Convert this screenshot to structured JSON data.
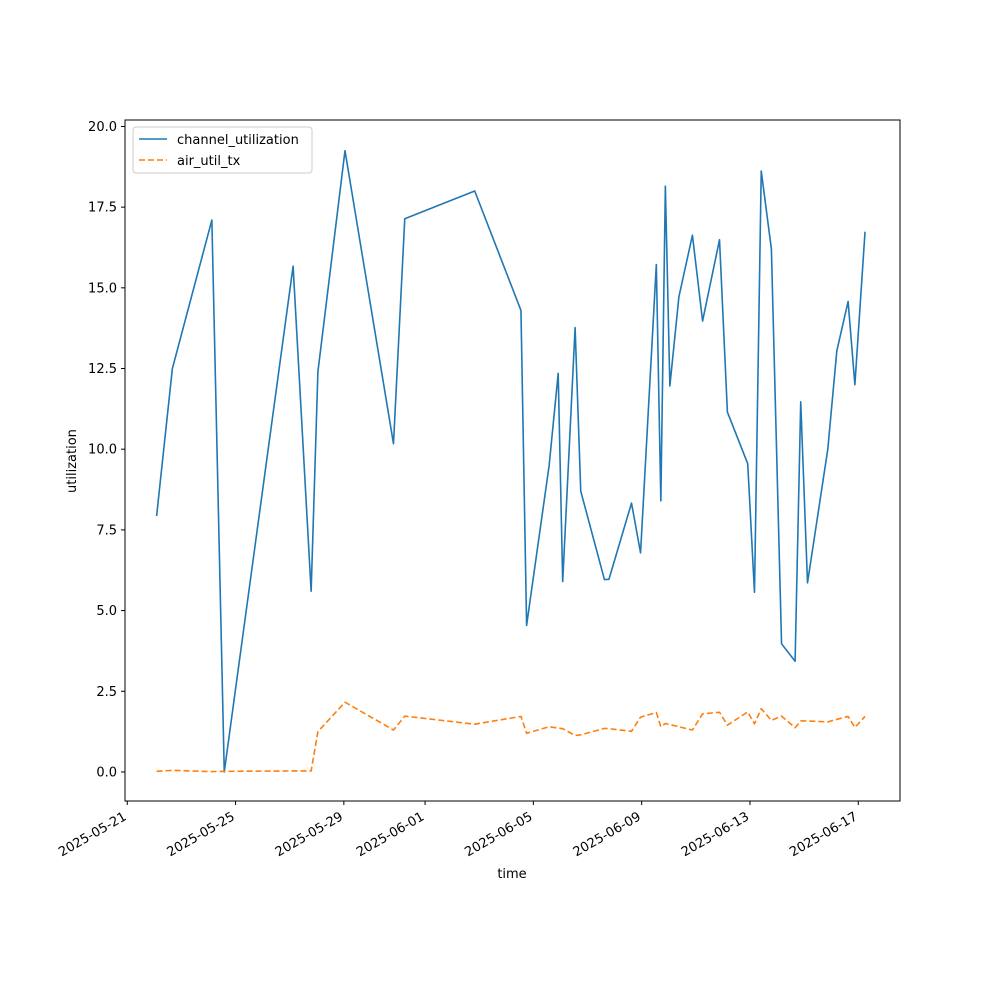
{
  "chart_data": {
    "type": "line",
    "xlabel": "time",
    "ylabel": "utilization",
    "ylim": [
      -0.9,
      20.2
    ],
    "xlim": [
      "2025-05-20T22:00",
      "2025-06-18T13:00"
    ],
    "yticks": [
      0.0,
      2.5,
      5.0,
      7.5,
      10.0,
      12.5,
      15.0,
      17.5,
      20.0
    ],
    "ytick_labels": [
      "0.0",
      "2.5",
      "5.0",
      "7.5",
      "10.0",
      "12.5",
      "15.0",
      "17.5",
      "20.0"
    ],
    "xticks": [
      "2025-05-21",
      "2025-05-25",
      "2025-05-29",
      "2025-06-01",
      "2025-06-05",
      "2025-06-09",
      "2025-06-13",
      "2025-06-17"
    ],
    "xtick_labels": [
      "2025-05-21",
      "2025-05-25",
      "2025-05-29",
      "2025-06-01",
      "2025-06-05",
      "2025-06-09",
      "2025-06-13",
      "2025-06-17"
    ],
    "grid": false,
    "legend_position": "top-left",
    "series": [
      {
        "name": "channel_utilization",
        "color": "#1f77b4",
        "style": "solid",
        "x": [
          "2025-05-22T02:00",
          "2025-05-22T16:00",
          "2025-05-24T03:00",
          "2025-05-24T14:00",
          "2025-05-27T03:00",
          "2025-05-27T19:00",
          "2025-05-28T01:00",
          "2025-05-29T01:00",
          "2025-05-30T20:00",
          "2025-05-31T06:00",
          "2025-06-02T20:00",
          "2025-06-04T13:00",
          "2025-06-04T18:00",
          "2025-06-05T14:00",
          "2025-06-05T22:00",
          "2025-06-06T02:00",
          "2025-06-06T13:00",
          "2025-06-06T18:00",
          "2025-06-07T15:00",
          "2025-06-07T19:00",
          "2025-06-08T15:00",
          "2025-06-08T23:00",
          "2025-06-09T13:00",
          "2025-06-09T17:00",
          "2025-06-09T21:00",
          "2025-06-10T01:00",
          "2025-06-10T09:00",
          "2025-06-10T21:00",
          "2025-06-11T06:00",
          "2025-06-11T21:00",
          "2025-06-12T04:00",
          "2025-06-12T22:00",
          "2025-06-13T04:00",
          "2025-06-13T10:00",
          "2025-06-13T19:00",
          "2025-06-14T04:00",
          "2025-06-14T16:00",
          "2025-06-14T21:00",
          "2025-06-15T03:00",
          "2025-06-15T21:00",
          "2025-06-16T05:00",
          "2025-06-16T15:00",
          "2025-06-16T21:00",
          "2025-06-17T06:00"
        ],
        "values": [
          7.93,
          12.5,
          17.1,
          0.0,
          15.67,
          5.6,
          12.4,
          19.25,
          10.17,
          17.14,
          18.0,
          14.3,
          4.54,
          9.5,
          12.35,
          5.9,
          13.77,
          8.7,
          5.96,
          5.97,
          8.33,
          6.79,
          15.72,
          8.4,
          18.15,
          11.96,
          14.72,
          16.63,
          13.97,
          16.49,
          11.15,
          9.55,
          5.57,
          18.62,
          16.2,
          3.97,
          3.43,
          11.47,
          5.86,
          10.0,
          13.05,
          14.58,
          12.0,
          16.74
        ]
      },
      {
        "name": "air_util_tx",
        "color": "#ff7f0e",
        "style": "dashed",
        "x": [
          "2025-05-22T02:00",
          "2025-05-22T16:00",
          "2025-05-24T03:00",
          "2025-05-24T14:00",
          "2025-05-27T03:00",
          "2025-05-27T19:00",
          "2025-05-28T01:00",
          "2025-05-29T01:00",
          "2025-05-30T20:00",
          "2025-05-31T06:00",
          "2025-06-02T20:00",
          "2025-06-04T13:00",
          "2025-06-04T18:00",
          "2025-06-05T14:00",
          "2025-06-05T22:00",
          "2025-06-06T02:00",
          "2025-06-06T13:00",
          "2025-06-06T18:00",
          "2025-06-07T15:00",
          "2025-06-07T19:00",
          "2025-06-08T15:00",
          "2025-06-08T23:00",
          "2025-06-09T13:00",
          "2025-06-09T17:00",
          "2025-06-09T21:00",
          "2025-06-10T01:00",
          "2025-06-10T09:00",
          "2025-06-10T21:00",
          "2025-06-11T06:00",
          "2025-06-11T21:00",
          "2025-06-12T04:00",
          "2025-06-12T22:00",
          "2025-06-13T04:00",
          "2025-06-13T10:00",
          "2025-06-13T19:00",
          "2025-06-14T04:00",
          "2025-06-14T16:00",
          "2025-06-14T21:00",
          "2025-06-15T03:00",
          "2025-06-15T21:00",
          "2025-06-16T05:00",
          "2025-06-16T15:00",
          "2025-06-16T21:00",
          "2025-06-17T06:00"
        ],
        "values": [
          0.02,
          0.05,
          0.01,
          0.02,
          0.03,
          0.03,
          1.25,
          2.16,
          1.3,
          1.73,
          1.48,
          1.72,
          1.2,
          1.4,
          1.36,
          1.34,
          1.13,
          1.15,
          1.35,
          1.34,
          1.26,
          1.7,
          1.84,
          1.4,
          1.5,
          1.47,
          1.4,
          1.3,
          1.8,
          1.85,
          1.45,
          1.86,
          1.49,
          1.96,
          1.6,
          1.73,
          1.37,
          1.58,
          1.58,
          1.55,
          1.63,
          1.72,
          1.38,
          1.72
        ]
      }
    ]
  }
}
